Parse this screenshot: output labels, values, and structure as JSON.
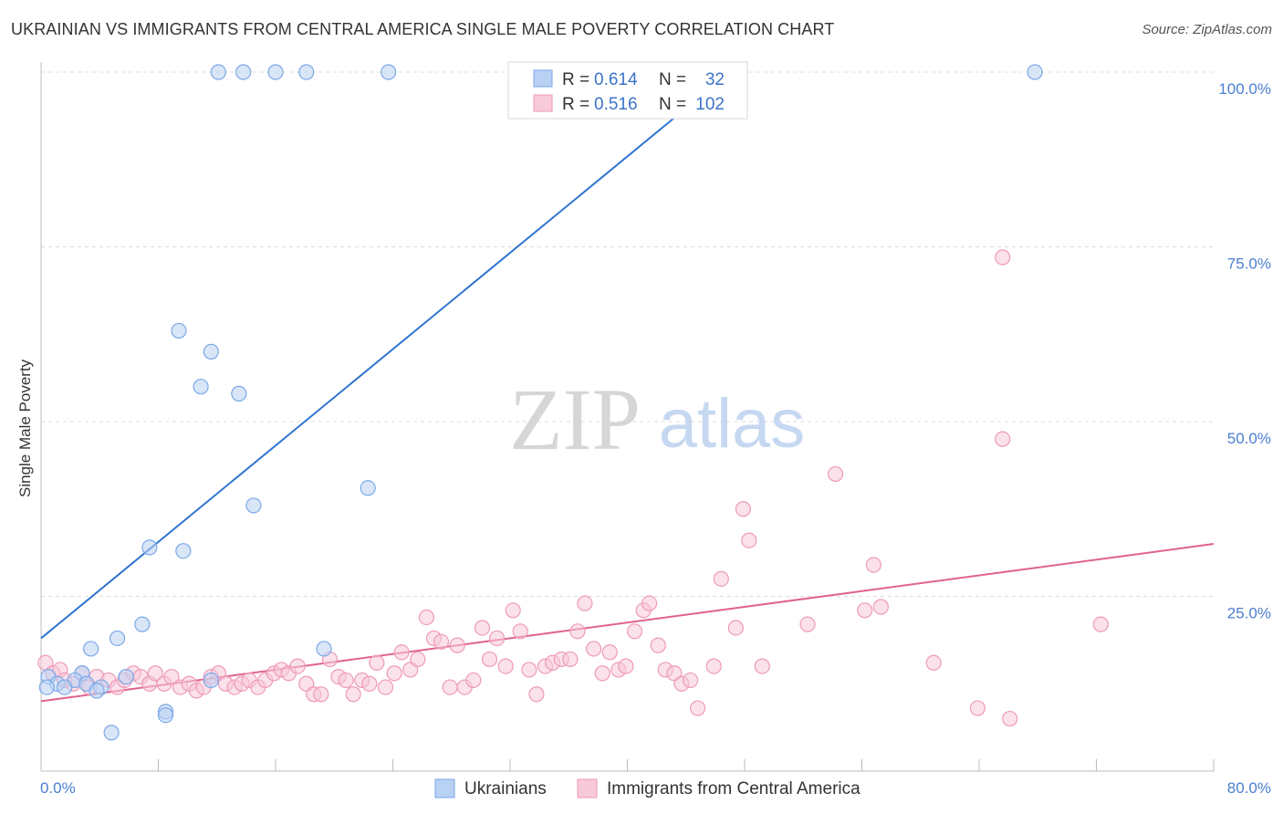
{
  "title": "UKRAINIAN VS IMMIGRANTS FROM CENTRAL AMERICA SINGLE MALE POVERTY CORRELATION CHART",
  "source": "Source: ZipAtlas.com",
  "watermark": {
    "zip": "ZIP",
    "atlas": "atlas"
  },
  "chart_data": {
    "type": "scatter",
    "ylabel": "Single Male Poverty",
    "xlim": [
      0,
      80
    ],
    "ylim": [
      0,
      105
    ],
    "x_tick_labels": [
      "0.0%",
      "80.0%"
    ],
    "y_ticks": [
      25,
      50,
      75,
      100
    ],
    "y_tick_labels": [
      "25.0%",
      "50.0%",
      "75.0%",
      "100.0%"
    ],
    "grid": true,
    "legend_placement": "top-center",
    "legend": [
      {
        "r_label": "R =",
        "r_value": "0.614",
        "n_label": "N =",
        "n_value": "32"
      },
      {
        "r_label": "R =",
        "r_value": "0.516",
        "n_label": "N =",
        "n_value": "102"
      }
    ],
    "series": [
      {
        "name": "Ukrainians",
        "color": "#7aa8e8",
        "fill": "#b9d1f3",
        "line_color": "#2f74d0",
        "trend": [
          [
            0,
            19
          ],
          [
            47,
            100
          ]
        ],
        "points": [
          [
            12.1,
            100
          ],
          [
            13.8,
            100
          ],
          [
            16,
            100
          ],
          [
            18.1,
            100
          ],
          [
            23.7,
            100
          ],
          [
            67.8,
            100
          ],
          [
            9.4,
            63
          ],
          [
            11.6,
            60
          ],
          [
            10.9,
            55
          ],
          [
            13.5,
            54
          ],
          [
            22.3,
            40.5
          ],
          [
            14.5,
            38
          ],
          [
            7.4,
            32
          ],
          [
            9.7,
            31.5
          ],
          [
            6.9,
            21
          ],
          [
            5.2,
            19
          ],
          [
            3.4,
            17.5
          ],
          [
            19.3,
            17.5
          ],
          [
            2.8,
            14
          ],
          [
            0.5,
            13.5
          ],
          [
            5.8,
            13.5
          ],
          [
            11.6,
            13
          ],
          [
            2.3,
            13
          ],
          [
            3.1,
            12.5
          ],
          [
            1.1,
            12.5
          ],
          [
            0.4,
            12
          ],
          [
            1.6,
            12
          ],
          [
            4.1,
            12
          ],
          [
            3.8,
            11.5
          ],
          [
            8.5,
            8.5
          ],
          [
            8.5,
            8
          ],
          [
            4.8,
            5.5
          ]
        ]
      },
      {
        "name": "Immigrants from Central America",
        "color": "#ee9ab8",
        "fill": "#f8c9d9",
        "line_color": "#e0628f",
        "trend": [
          [
            0,
            10
          ],
          [
            80,
            32.5
          ]
        ],
        "points": [
          [
            0.3,
            15.5
          ],
          [
            0.8,
            14
          ],
          [
            1.3,
            14.5
          ],
          [
            1.6,
            13
          ],
          [
            2.2,
            12.5
          ],
          [
            2.8,
            14
          ],
          [
            3.3,
            12
          ],
          [
            3.8,
            13.5
          ],
          [
            4.6,
            13
          ],
          [
            5.2,
            12
          ],
          [
            5.7,
            13
          ],
          [
            6.3,
            14
          ],
          [
            6.8,
            13.5
          ],
          [
            7.4,
            12.5
          ],
          [
            7.8,
            14
          ],
          [
            8.4,
            12.5
          ],
          [
            8.9,
            13.5
          ],
          [
            9.5,
            12
          ],
          [
            10.1,
            12.5
          ],
          [
            10.6,
            11.5
          ],
          [
            11.1,
            12
          ],
          [
            11.6,
            13.5
          ],
          [
            12.1,
            14
          ],
          [
            12.6,
            12.5
          ],
          [
            13.2,
            12
          ],
          [
            13.7,
            12.5
          ],
          [
            14.2,
            13
          ],
          [
            14.8,
            12
          ],
          [
            15.3,
            13
          ],
          [
            15.9,
            14
          ],
          [
            16.4,
            14.5
          ],
          [
            16.9,
            14
          ],
          [
            17.5,
            15
          ],
          [
            18.1,
            12.5
          ],
          [
            18.6,
            11
          ],
          [
            19.1,
            11
          ],
          [
            19.7,
            16
          ],
          [
            20.3,
            13.5
          ],
          [
            20.8,
            13
          ],
          [
            21.3,
            11
          ],
          [
            21.9,
            13
          ],
          [
            22.4,
            12.5
          ],
          [
            22.9,
            15.5
          ],
          [
            23.5,
            12
          ],
          [
            24.1,
            14
          ],
          [
            24.6,
            17
          ],
          [
            25.2,
            14.5
          ],
          [
            25.7,
            16
          ],
          [
            26.3,
            22
          ],
          [
            26.8,
            19
          ],
          [
            27.3,
            18.5
          ],
          [
            27.9,
            12
          ],
          [
            28.4,
            18
          ],
          [
            28.9,
            12
          ],
          [
            29.5,
            13
          ],
          [
            30.1,
            20.5
          ],
          [
            30.6,
            16
          ],
          [
            31.1,
            19
          ],
          [
            31.7,
            15
          ],
          [
            32.2,
            23
          ],
          [
            32.7,
            20
          ],
          [
            33.3,
            14.5
          ],
          [
            33.8,
            11
          ],
          [
            34.4,
            15
          ],
          [
            34.9,
            15.5
          ],
          [
            35.5,
            16
          ],
          [
            36.1,
            16
          ],
          [
            36.6,
            20
          ],
          [
            37.1,
            24
          ],
          [
            37.7,
            17.5
          ],
          [
            38.3,
            14
          ],
          [
            38.8,
            17
          ],
          [
            39.4,
            14.5
          ],
          [
            39.9,
            15
          ],
          [
            40.5,
            20
          ],
          [
            41.1,
            23
          ],
          [
            41.5,
            24
          ],
          [
            42.1,
            18
          ],
          [
            42.6,
            14.5
          ],
          [
            43.2,
            14
          ],
          [
            43.7,
            12.5
          ],
          [
            44.3,
            13
          ],
          [
            44.8,
            9
          ],
          [
            45.9,
            15
          ],
          [
            46.4,
            27.5
          ],
          [
            47.4,
            20.5
          ],
          [
            47.9,
            37.5
          ],
          [
            48.3,
            33
          ],
          [
            49.2,
            15
          ],
          [
            52.3,
            21
          ],
          [
            54.2,
            42.5
          ],
          [
            56.2,
            23
          ],
          [
            56.8,
            29.5
          ],
          [
            57.3,
            23.5
          ],
          [
            60.9,
            15.5
          ],
          [
            63.9,
            9
          ],
          [
            65.6,
            73.5
          ],
          [
            65.6,
            47.5
          ],
          [
            66.1,
            7.5
          ],
          [
            72.3,
            21
          ]
        ]
      }
    ],
    "bottom_legend": [
      "Ukrainians",
      "Immigrants from Central America"
    ]
  }
}
